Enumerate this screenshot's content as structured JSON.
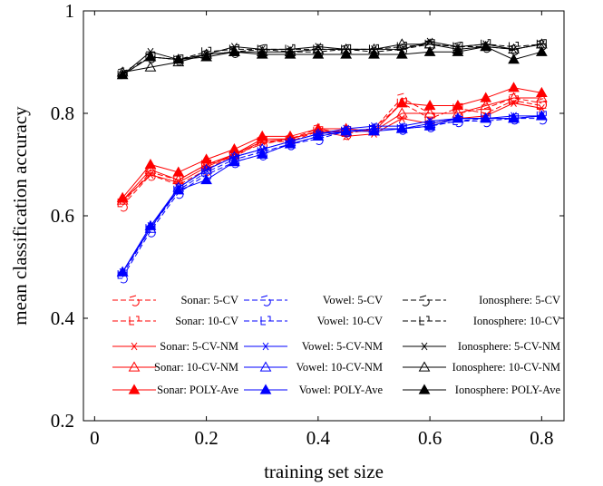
{
  "chart_data": {
    "type": "line",
    "title": "",
    "xlabel": "training set size",
    "ylabel": "mean classification accuracy",
    "xlim": [
      -0.02,
      0.84
    ],
    "ylim": [
      0.2,
      1.0
    ],
    "xticks": [
      0,
      0.2,
      0.4,
      0.6,
      0.8
    ],
    "xtick_labels": [
      "0",
      "0.2",
      "0.4",
      "0.6",
      "0.8"
    ],
    "yticks": [
      0.2,
      0.4,
      0.6,
      0.8,
      1.0
    ],
    "ytick_labels": [
      "0.2",
      "0.4",
      "0.6",
      "0.8",
      "1"
    ],
    "grid": false,
    "legend_position": "bottom-center",
    "x": [
      0.05,
      0.1,
      0.15,
      0.2,
      0.25,
      0.3,
      0.35,
      0.4,
      0.45,
      0.5,
      0.55,
      0.6,
      0.65,
      0.7,
      0.75,
      0.8
    ],
    "series": [
      {
        "name": "Sonar: 5-CV",
        "color": "#ff0000",
        "dash": "dashed",
        "marker": "sym5",
        "values": [
          0.62,
          0.68,
          0.66,
          0.69,
          0.72,
          0.74,
          0.75,
          0.77,
          0.76,
          0.77,
          0.83,
          0.8,
          0.8,
          0.81,
          0.83,
          0.82
        ]
      },
      {
        "name": "Sonar: 10-CV",
        "color": "#ff0000",
        "dash": "dashed",
        "marker": "sym10",
        "values": [
          0.625,
          0.685,
          0.67,
          0.7,
          0.715,
          0.745,
          0.745,
          0.765,
          0.765,
          0.77,
          0.82,
          0.79,
          0.81,
          0.8,
          0.825,
          0.815
        ]
      },
      {
        "name": "Sonar: 5-CV-NM",
        "color": "#ff0000",
        "dash": "solid",
        "marker": "star",
        "values": [
          0.63,
          0.68,
          0.665,
          0.695,
          0.72,
          0.745,
          0.75,
          0.765,
          0.755,
          0.76,
          0.79,
          0.78,
          0.79,
          0.795,
          0.82,
          0.81
        ]
      },
      {
        "name": "Sonar: 10-CV-NM",
        "color": "#ff0000",
        "dash": "solid",
        "marker": "tri-open",
        "values": [
          0.63,
          0.69,
          0.67,
          0.7,
          0.72,
          0.75,
          0.75,
          0.765,
          0.765,
          0.765,
          0.8,
          0.8,
          0.8,
          0.815,
          0.83,
          0.83
        ]
      },
      {
        "name": "Sonar: POLY-Ave",
        "color": "#ff0000",
        "dash": "solid",
        "marker": "tri-filled",
        "values": [
          0.635,
          0.7,
          0.685,
          0.71,
          0.73,
          0.755,
          0.755,
          0.77,
          0.77,
          0.765,
          0.82,
          0.815,
          0.815,
          0.83,
          0.85,
          0.84
        ]
      },
      {
        "name": "Vowel: 5-CV",
        "color": "#0000ff",
        "dash": "dashed",
        "marker": "sym5",
        "values": [
          0.48,
          0.57,
          0.645,
          0.68,
          0.705,
          0.72,
          0.74,
          0.75,
          0.765,
          0.77,
          0.77,
          0.775,
          0.785,
          0.785,
          0.79,
          0.79
        ]
      },
      {
        "name": "Vowel: 10-CV",
        "color": "#0000ff",
        "dash": "dashed",
        "marker": "sym10",
        "values": [
          0.485,
          0.575,
          0.65,
          0.685,
          0.71,
          0.725,
          0.74,
          0.755,
          0.765,
          0.77,
          0.77,
          0.775,
          0.785,
          0.79,
          0.79,
          0.795
        ]
      },
      {
        "name": "Vowel: 5-CV-NM",
        "color": "#0000ff",
        "dash": "solid",
        "marker": "star",
        "values": [
          0.49,
          0.58,
          0.655,
          0.69,
          0.715,
          0.73,
          0.745,
          0.76,
          0.77,
          0.775,
          0.775,
          0.785,
          0.79,
          0.79,
          0.795,
          0.795
        ]
      },
      {
        "name": "Vowel: 10-CV-NM",
        "color": "#0000ff",
        "dash": "solid",
        "marker": "tri-open",
        "values": [
          0.49,
          0.575,
          0.655,
          0.69,
          0.715,
          0.73,
          0.745,
          0.76,
          0.765,
          0.77,
          0.77,
          0.78,
          0.79,
          0.79,
          0.79,
          0.795
        ]
      },
      {
        "name": "Vowel: POLY-Ave",
        "color": "#0000ff",
        "dash": "solid",
        "marker": "tri-filled",
        "values": [
          0.49,
          0.58,
          0.65,
          0.67,
          0.705,
          0.72,
          0.74,
          0.755,
          0.765,
          0.765,
          0.77,
          0.775,
          0.79,
          0.79,
          0.79,
          0.795
        ]
      },
      {
        "name": "Ionosphere: 5-CV",
        "color": "#000000",
        "dash": "dashed",
        "marker": "sym5",
        "values": [
          0.88,
          0.91,
          0.905,
          0.915,
          0.92,
          0.925,
          0.92,
          0.92,
          0.925,
          0.92,
          0.925,
          0.935,
          0.93,
          0.93,
          0.925,
          0.935
        ]
      },
      {
        "name": "Ionosphere: 10-CV",
        "color": "#000000",
        "dash": "dashed",
        "marker": "sym10",
        "values": [
          0.875,
          0.91,
          0.905,
          0.92,
          0.925,
          0.925,
          0.925,
          0.925,
          0.925,
          0.925,
          0.93,
          0.935,
          0.93,
          0.935,
          0.93,
          0.935
        ]
      },
      {
        "name": "Ionosphere: 5-CV-NM",
        "color": "#000000",
        "dash": "solid",
        "marker": "star",
        "values": [
          0.875,
          0.92,
          0.905,
          0.915,
          0.93,
          0.925,
          0.925,
          0.93,
          0.925,
          0.925,
          0.925,
          0.94,
          0.93,
          0.935,
          0.925,
          0.935
        ]
      },
      {
        "name": "Ionosphere: 10-CV-NM",
        "color": "#000000",
        "dash": "solid",
        "marker": "tri-open",
        "values": [
          0.88,
          0.89,
          0.9,
          0.915,
          0.92,
          0.92,
          0.92,
          0.925,
          0.925,
          0.925,
          0.935,
          0.935,
          0.925,
          0.93,
          0.925,
          0.935
        ]
      },
      {
        "name": "Ionosphere: POLY-Ave",
        "color": "#000000",
        "dash": "solid",
        "marker": "tri-filled",
        "values": [
          0.875,
          0.91,
          0.905,
          0.91,
          0.92,
          0.915,
          0.915,
          0.915,
          0.915,
          0.915,
          0.915,
          0.92,
          0.92,
          0.93,
          0.905,
          0.92
        ]
      }
    ]
  }
}
